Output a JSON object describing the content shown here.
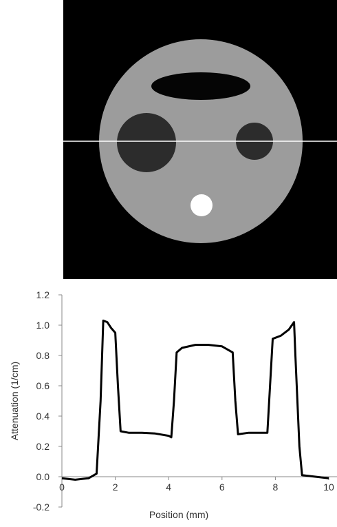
{
  "chart_data": {
    "type": "line",
    "xlabel": "Position (mm)",
    "ylabel": "Attenuation (1/cm)",
    "x": [
      0,
      0.5,
      1.0,
      1.3,
      1.45,
      1.55,
      1.7,
      1.85,
      2.0,
      2.1,
      2.2,
      2.5,
      3.0,
      3.5,
      4.0,
      4.1,
      4.2,
      4.3,
      4.5,
      5.0,
      5.5,
      6.0,
      6.3,
      6.4,
      6.5,
      6.6,
      7.0,
      7.5,
      7.7,
      7.8,
      7.9,
      8.2,
      8.5,
      8.7,
      8.75,
      8.9,
      9.0,
      9.5,
      10.0
    ],
    "series": [
      {
        "color": "#000000",
        "values": [
          -0.01,
          -0.02,
          -0.01,
          0.02,
          0.5,
          1.03,
          1.02,
          0.98,
          0.95,
          0.6,
          0.3,
          0.29,
          0.29,
          0.285,
          0.27,
          0.26,
          0.5,
          0.82,
          0.85,
          0.87,
          0.87,
          0.86,
          0.83,
          0.82,
          0.5,
          0.28,
          0.29,
          0.29,
          0.29,
          0.6,
          0.91,
          0.93,
          0.97,
          1.02,
          0.8,
          0.2,
          0.01,
          0.0,
          -0.01
        ]
      }
    ],
    "xlim": [
      0,
      10
    ],
    "xticks": [
      0,
      2,
      4,
      6,
      8,
      10
    ],
    "ylim": [
      -0.2,
      1.2
    ],
    "yticks": [
      {
        "value": -0.2,
        "label": "-0.2"
      },
      {
        "value": 0,
        "label": "0.0"
      },
      {
        "value": 0.2,
        "label": "0.2"
      },
      {
        "value": 0.4,
        "label": "0.4"
      },
      {
        "value": 0.6,
        "label": "0.6"
      },
      {
        "value": 0.8,
        "label": "0.8"
      },
      {
        "value": 1.0,
        "label": "1.0"
      },
      {
        "value": 1.2,
        "label": "1.2"
      }
    ]
  }
}
